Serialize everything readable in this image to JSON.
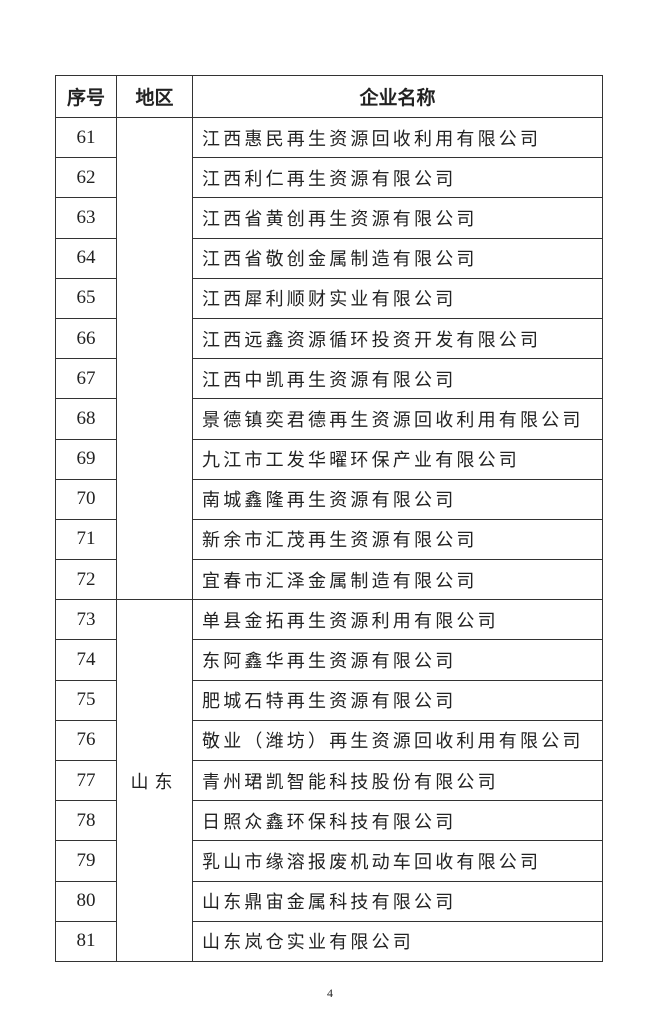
{
  "header": {
    "col_no": "序号",
    "col_region": "地区",
    "col_name": "企业名称"
  },
  "groups": [
    {
      "region": "",
      "rows": [
        {
          "no": "61",
          "name": "江西惠民再生资源回收利用有限公司"
        },
        {
          "no": "62",
          "name": "江西利仁再生资源有限公司"
        },
        {
          "no": "63",
          "name": "江西省黄创再生资源有限公司"
        },
        {
          "no": "64",
          "name": "江西省敬创金属制造有限公司"
        },
        {
          "no": "65",
          "name": "江西犀利顺财实业有限公司"
        },
        {
          "no": "66",
          "name": "江西远鑫资源循环投资开发有限公司"
        },
        {
          "no": "67",
          "name": "江西中凯再生资源有限公司"
        },
        {
          "no": "68",
          "name": "景德镇奕君德再生资源回收利用有限公司"
        },
        {
          "no": "69",
          "name": "九江市工发华曜环保产业有限公司"
        },
        {
          "no": "70",
          "name": "南城鑫隆再生资源有限公司"
        },
        {
          "no": "71",
          "name": "新余市汇茂再生资源有限公司"
        },
        {
          "no": "72",
          "name": "宜春市汇泽金属制造有限公司"
        }
      ]
    },
    {
      "region": "山东",
      "rows": [
        {
          "no": "73",
          "name": "单县金拓再生资源利用有限公司"
        },
        {
          "no": "74",
          "name": "东阿鑫华再生资源有限公司"
        },
        {
          "no": "75",
          "name": "肥城石特再生资源有限公司"
        },
        {
          "no": "76",
          "name": "敬业（潍坊）再生资源回收利用有限公司"
        },
        {
          "no": "77",
          "name": "青州珺凯智能科技股份有限公司"
        },
        {
          "no": "78",
          "name": "日照众鑫环保科技有限公司"
        },
        {
          "no": "79",
          "name": "乳山市缘溶报废机动车回收有限公司"
        },
        {
          "no": "80",
          "name": "山东鼎宙金属科技有限公司"
        },
        {
          "no": "81",
          "name": "山东岚仓实业有限公司"
        }
      ]
    }
  ],
  "page_number": "4"
}
